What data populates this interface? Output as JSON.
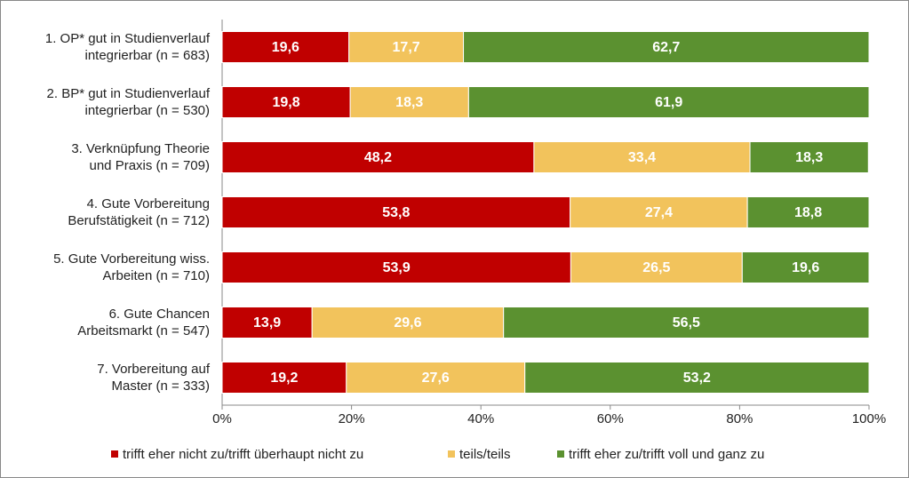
{
  "chart_data": {
    "type": "stacked-bar-horizontal",
    "categories": [
      "1. OP* gut in Studienverlauf\nintegrierbar (n = 683)",
      "2. BP* gut in Studienverlauf\nintegrierbar (n = 530)",
      "3. Verknüpfung Theorie\nund Praxis (n = 709)",
      "4. Gute Vorbereitung\nBerufstätigkeit (n = 712)",
      "5. Gute Vorbereitung wiss.\nArbeiten (n = 710)",
      "6. Gute Chancen\nArbeitsmarkt (n = 547)",
      "7. Vorbereitung auf\nMaster (n = 333)"
    ],
    "series": [
      {
        "name": "trifft eher nicht zu/trifft überhaupt nicht zu",
        "color": "#c00000",
        "values": [
          19.6,
          19.8,
          48.2,
          53.8,
          53.9,
          13.9,
          19.2
        ],
        "value_labels": [
          "19,6",
          "19,8",
          "48,2",
          "53,8",
          "53,9",
          "13,9",
          "19,2"
        ]
      },
      {
        "name": "teils/teils",
        "color": "#f2c35c",
        "values": [
          17.7,
          18.3,
          33.4,
          27.4,
          26.5,
          29.6,
          27.6
        ],
        "value_labels": [
          "17,7",
          "18,3",
          "33,4",
          "27,4",
          "26,5",
          "29,6",
          "27,6"
        ]
      },
      {
        "name": "trifft eher zu/trifft voll und ganz zu",
        "color": "#5b9130",
        "values": [
          62.7,
          61.9,
          18.3,
          18.8,
          19.6,
          56.5,
          53.2
        ],
        "value_labels": [
          "62,7",
          "61,9",
          "18,3",
          "18,8",
          "19,6",
          "56,5",
          "53,2"
        ]
      }
    ],
    "xlim": [
      0,
      100
    ],
    "xticks": [
      {
        "value": 0,
        "label": "0%"
      },
      {
        "value": 20,
        "label": "20%"
      },
      {
        "value": 40,
        "label": "40%"
      },
      {
        "value": 60,
        "label": "60%"
      },
      {
        "value": 80,
        "label": "80%"
      },
      {
        "value": 100,
        "label": "100%"
      }
    ],
    "grid": false,
    "legend": "bottom"
  }
}
